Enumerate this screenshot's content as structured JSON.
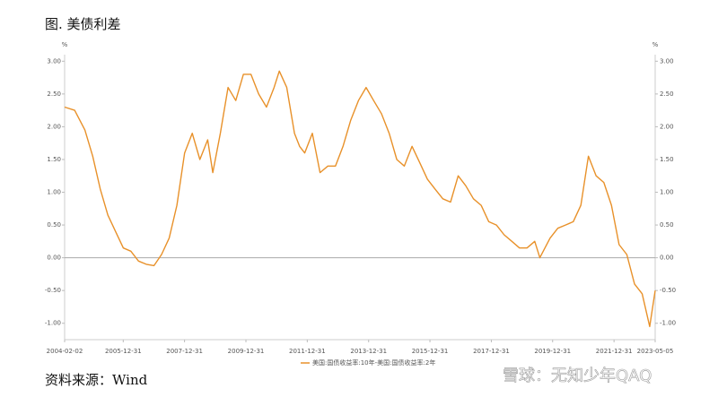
{
  "title": "图. 美债利差",
  "source": "资料来源：Wind",
  "watermark": "雪球：无知少年QAQ",
  "chart_data": {
    "type": "line",
    "y_unit": "%",
    "y2_unit": "%",
    "x": [
      "2004-02-02",
      "2004-06-01",
      "2004-10-01",
      "2005-01-01",
      "2005-04-01",
      "2005-07-01",
      "2005-10-01",
      "2006-01-01",
      "2006-04-01",
      "2006-07-01",
      "2006-10-01",
      "2007-01-01",
      "2007-04-01",
      "2007-07-01",
      "2007-10-01",
      "2008-01-01",
      "2008-04-01",
      "2008-07-01",
      "2008-10-01",
      "2008-12-01",
      "2009-03-01",
      "2009-06-01",
      "2009-09-01",
      "2009-12-01",
      "2010-03-01",
      "2010-06-01",
      "2010-09-01",
      "2010-12-01",
      "2011-02-01",
      "2011-05-01",
      "2011-08-01",
      "2011-10-01",
      "2011-12-01",
      "2012-03-01",
      "2012-06-01",
      "2012-09-01",
      "2012-12-01",
      "2013-03-01",
      "2013-06-01",
      "2013-09-01",
      "2013-12-01",
      "2014-03-01",
      "2014-06-01",
      "2014-09-01",
      "2014-12-01",
      "2015-03-01",
      "2015-06-01",
      "2015-09-01",
      "2015-12-01",
      "2016-03-01",
      "2016-06-01",
      "2016-09-01",
      "2016-12-01",
      "2017-03-01",
      "2017-06-01",
      "2017-09-01",
      "2017-12-01",
      "2018-03-01",
      "2018-06-01",
      "2018-09-01",
      "2018-12-01",
      "2019-03-01",
      "2019-06-01",
      "2019-08-01",
      "2019-12-01",
      "2020-03-01",
      "2020-06-01",
      "2020-09-01",
      "2020-12-01",
      "2021-03-01",
      "2021-06-01",
      "2021-09-01",
      "2021-12-01",
      "2022-03-01",
      "2022-06-01",
      "2022-09-01",
      "2022-12-01",
      "2023-03-01",
      "2023-05-05"
    ],
    "series": [
      {
        "name": "美国:国债收益率:10年-美国:国债收益率:2年",
        "color": "#e8912a",
        "values": [
          2.3,
          2.25,
          1.95,
          1.55,
          1.05,
          0.65,
          0.4,
          0.15,
          0.1,
          -0.05,
          -0.1,
          -0.12,
          0.05,
          0.3,
          0.8,
          1.6,
          1.9,
          1.5,
          1.8,
          1.3,
          1.9,
          2.6,
          2.4,
          2.8,
          2.8,
          2.5,
          2.3,
          2.6,
          2.85,
          2.6,
          1.9,
          1.7,
          1.6,
          1.9,
          1.3,
          1.4,
          1.4,
          1.7,
          2.1,
          2.4,
          2.6,
          2.4,
          2.2,
          1.9,
          1.5,
          1.4,
          1.7,
          1.45,
          1.2,
          1.05,
          0.9,
          0.85,
          1.25,
          1.1,
          0.9,
          0.8,
          0.55,
          0.5,
          0.35,
          0.25,
          0.15,
          0.15,
          0.25,
          0.0,
          0.3,
          0.45,
          0.5,
          0.55,
          0.8,
          1.55,
          1.25,
          1.15,
          0.8,
          0.2,
          0.05,
          -0.4,
          -0.55,
          -1.05,
          -0.5
        ]
      }
    ],
    "xlim": [
      "2004-02-02",
      "2023-05-05"
    ],
    "xticks": [
      "2004-02-02",
      "2005-12-31",
      "2007-12-31",
      "2009-12-31",
      "2011-12-31",
      "2013-12-31",
      "2015-12-31",
      "2017-12-31",
      "2019-12-31",
      "2021-12-31",
      "2023-05-05"
    ],
    "ylim": [
      -1.25,
      3.1
    ],
    "yticks": [
      {
        "value": 3,
        "label": "3.00"
      },
      {
        "value": 2.5,
        "label": "2.50"
      },
      {
        "value": 2,
        "label": "2.00"
      },
      {
        "value": 1.5,
        "label": "1.50"
      },
      {
        "value": 1,
        "label": "1.00"
      },
      {
        "value": 0.5,
        "label": "0.50"
      },
      {
        "value": 0,
        "label": "0.00"
      },
      {
        "value": -0.5,
        "label": "-0.50"
      },
      {
        "value": -1,
        "label": "-1.00"
      }
    ],
    "y2lim": [
      -1.25,
      3.1
    ],
    "y2ticks": [
      {
        "value": 3,
        "label": "3.00"
      },
      {
        "value": 2.5,
        "label": "2.50"
      },
      {
        "value": 2,
        "label": "2.00"
      },
      {
        "value": 1.5,
        "label": "1.50"
      },
      {
        "value": 1,
        "label": "1.00"
      },
      {
        "value": 0.5,
        "label": "0.50"
      },
      {
        "value": 0,
        "label": "0.00"
      },
      {
        "value": -0.5,
        "label": "-0.50"
      },
      {
        "value": -1,
        "label": "-1.00"
      }
    ]
  }
}
